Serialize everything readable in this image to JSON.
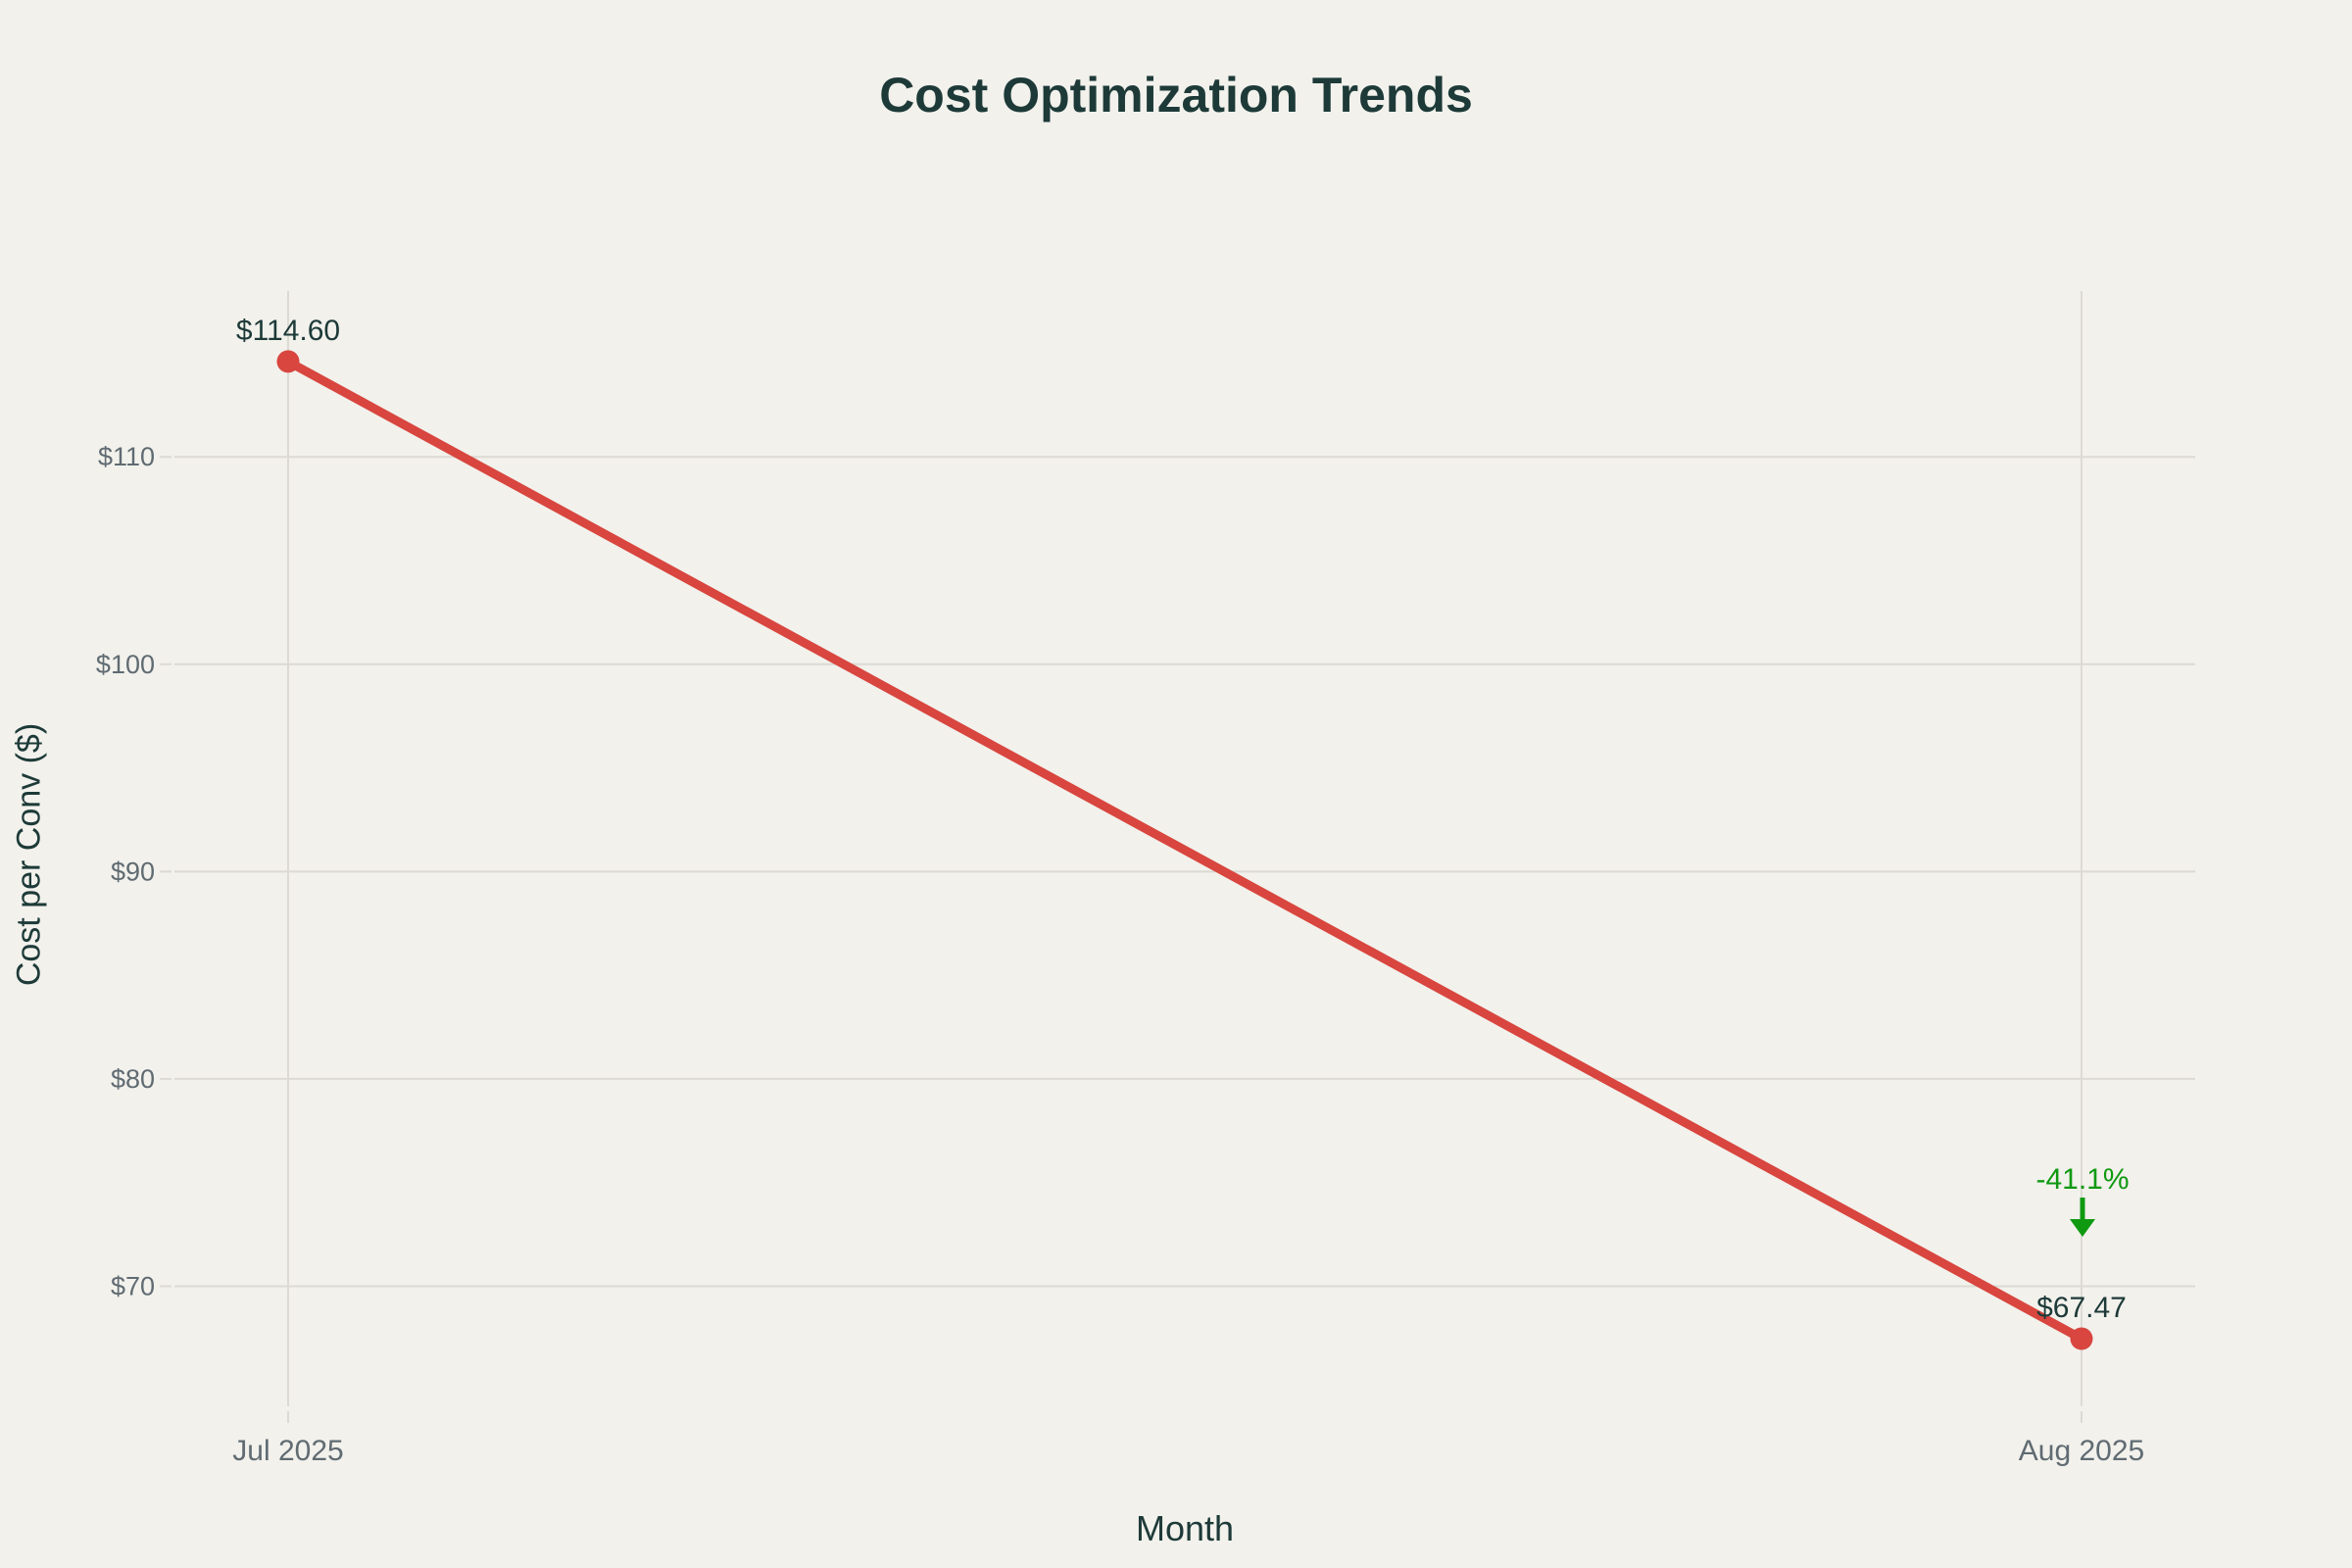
{
  "chart_data": {
    "type": "line",
    "title": "Cost Optimization Trends",
    "xlabel": "Month",
    "ylabel": "Cost per Conv ($)",
    "categories": [
      "Jul 2025",
      "Aug 2025"
    ],
    "series": [
      {
        "name": "Cost per Conv ($)",
        "values": [
          114.6,
          67.47
        ]
      }
    ],
    "point_labels": [
      "$114.60",
      "$67.47"
    ],
    "yticks": [
      {
        "value": 70,
        "label": "$70"
      },
      {
        "value": 80,
        "label": "$80"
      },
      {
        "value": 90,
        "label": "$90"
      },
      {
        "value": 100,
        "label": "$100"
      },
      {
        "value": 110,
        "label": "$110"
      }
    ],
    "ylim": [
      63.5,
      118.0
    ],
    "grid": true,
    "legend": false,
    "annotation": {
      "text": "-41.1%",
      "arrow": "down",
      "attached_to_category": "Aug 2025"
    }
  },
  "colors": {
    "background": "#f2f1ec",
    "text_dark": "#1d3a38",
    "tick_text": "#606b72",
    "gridline": "#dcdad3",
    "line": "#d8463f",
    "annotation_green": "#0f9910"
  }
}
